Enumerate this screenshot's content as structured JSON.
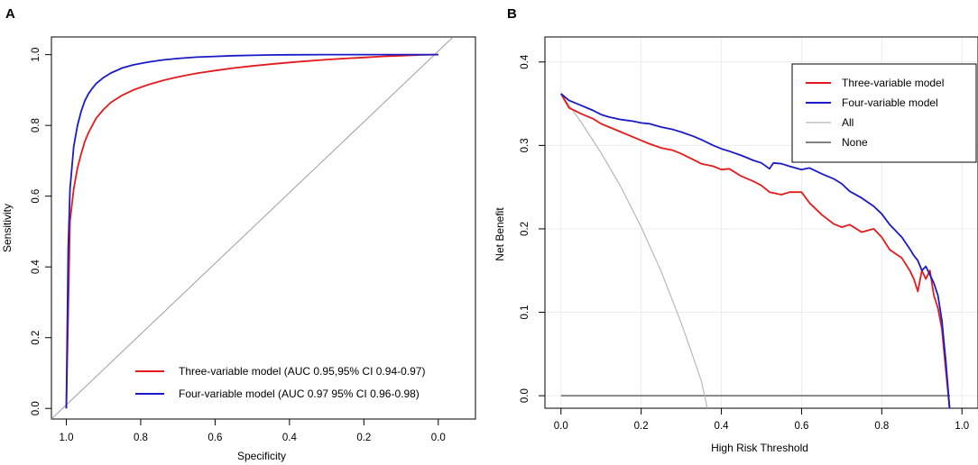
{
  "colors": {
    "three_variable": "#e41a1c",
    "four_variable": "#1a1ac8",
    "all": "#b3b3b3",
    "none": "#333333",
    "diagonal": "#9e9e9e",
    "grid": "#ececec"
  },
  "chart_data": [
    {
      "panel_label": "A",
      "type": "line",
      "title": "",
      "xlabel": "Specificity",
      "ylabel": "Sensitivity",
      "xlim": [
        1.04,
        -0.1
      ],
      "ylim": [
        -0.03,
        1.05
      ],
      "x_ticks": [
        1.0,
        0.8,
        0.6,
        0.4,
        0.2,
        0.0
      ],
      "x_tick_labels": [
        "1.0",
        "0.8",
        "0.6",
        "0.4",
        "0.2",
        "0.0"
      ],
      "y_ticks": [
        0.0,
        0.2,
        0.4,
        0.6,
        0.8,
        1.0
      ],
      "y_tick_labels": [
        "0.0",
        "0.2",
        "0.4",
        "0.6",
        "0.8",
        "1.0"
      ],
      "grid": false,
      "legend_position": "bottom-right",
      "series": [
        {
          "name": "Three-variable model (AUC 0.95,95% CI 0.94-0.97)",
          "color_key": "three_variable",
          "x": [
            1.0,
            0.99,
            0.98,
            0.97,
            0.96,
            0.95,
            0.94,
            0.93,
            0.92,
            0.9,
            0.88,
            0.85,
            0.82,
            0.78,
            0.74,
            0.7,
            0.65,
            0.6,
            0.55,
            0.5,
            0.45,
            0.4,
            0.35,
            0.3,
            0.25,
            0.2,
            0.15,
            0.1,
            0.05,
            0.0
          ],
          "y": [
            0.0,
            0.53,
            0.62,
            0.68,
            0.72,
            0.755,
            0.78,
            0.8,
            0.82,
            0.845,
            0.865,
            0.885,
            0.9,
            0.915,
            0.927,
            0.937,
            0.947,
            0.955,
            0.962,
            0.968,
            0.973,
            0.978,
            0.982,
            0.986,
            0.989,
            0.992,
            0.995,
            0.997,
            0.999,
            1.0
          ]
        },
        {
          "name": "Four-variable model (AUC 0.97 95% CI 0.96-0.98)",
          "color_key": "four_variable",
          "x": [
            1.0,
            0.995,
            0.99,
            0.98,
            0.97,
            0.96,
            0.95,
            0.94,
            0.93,
            0.92,
            0.9,
            0.88,
            0.85,
            0.82,
            0.78,
            0.74,
            0.7,
            0.65,
            0.6,
            0.55,
            0.5,
            0.45,
            0.4,
            0.3,
            0.2,
            0.1,
            0.0
          ],
          "y": [
            0.0,
            0.45,
            0.62,
            0.74,
            0.8,
            0.84,
            0.87,
            0.89,
            0.905,
            0.918,
            0.935,
            0.948,
            0.962,
            0.971,
            0.979,
            0.985,
            0.989,
            0.993,
            0.995,
            0.997,
            0.998,
            0.999,
            0.9995,
            1.0,
            1.0,
            1.0,
            1.0
          ]
        },
        {
          "name": "reference",
          "color_key": "diagonal",
          "x": [
            1.04,
            -0.04
          ],
          "y": [
            -0.03,
            1.05
          ]
        }
      ]
    },
    {
      "panel_label": "B",
      "type": "line",
      "title": "",
      "xlabel": "High Risk Threshold",
      "ylabel": "Net Benefit",
      "xlim": [
        -0.04,
        1.04
      ],
      "ylim": [
        -0.015,
        0.43
      ],
      "x_ticks": [
        0.0,
        0.2,
        0.4,
        0.6,
        0.8,
        1.0
      ],
      "x_tick_labels": [
        "0.0",
        "0.2",
        "0.4",
        "0.6",
        "0.8",
        "1.0"
      ],
      "y_ticks": [
        0.0,
        0.1,
        0.2,
        0.3,
        0.4
      ],
      "y_tick_labels": [
        "0.0",
        "0.1",
        "0.2",
        "0.3",
        "0.4"
      ],
      "grid": true,
      "legend_position": "top-right",
      "series": [
        {
          "name": "Three-variable model",
          "color_key": "three_variable",
          "x": [
            0.0,
            0.02,
            0.05,
            0.08,
            0.1,
            0.12,
            0.15,
            0.18,
            0.2,
            0.22,
            0.25,
            0.28,
            0.3,
            0.33,
            0.35,
            0.38,
            0.4,
            0.42,
            0.45,
            0.48,
            0.5,
            0.52,
            0.55,
            0.57,
            0.6,
            0.62,
            0.65,
            0.68,
            0.7,
            0.72,
            0.75,
            0.78,
            0.8,
            0.82,
            0.85,
            0.87,
            0.88,
            0.89,
            0.9,
            0.91,
            0.92,
            0.93,
            0.94,
            0.95,
            0.96,
            0.97
          ],
          "y": [
            0.362,
            0.345,
            0.338,
            0.332,
            0.326,
            0.322,
            0.316,
            0.31,
            0.306,
            0.302,
            0.297,
            0.294,
            0.29,
            0.283,
            0.278,
            0.275,
            0.271,
            0.272,
            0.263,
            0.257,
            0.252,
            0.244,
            0.241,
            0.244,
            0.244,
            0.231,
            0.217,
            0.206,
            0.202,
            0.205,
            0.196,
            0.2,
            0.19,
            0.175,
            0.165,
            0.15,
            0.14,
            0.125,
            0.15,
            0.14,
            0.15,
            0.12,
            0.105,
            0.08,
            0.03,
            -0.02
          ]
        },
        {
          "name": "Four-variable model",
          "color_key": "four_variable",
          "x": [
            0.0,
            0.02,
            0.05,
            0.08,
            0.1,
            0.12,
            0.15,
            0.18,
            0.2,
            0.22,
            0.25,
            0.28,
            0.3,
            0.33,
            0.35,
            0.38,
            0.4,
            0.42,
            0.45,
            0.48,
            0.5,
            0.52,
            0.53,
            0.55,
            0.57,
            0.6,
            0.62,
            0.65,
            0.68,
            0.7,
            0.72,
            0.75,
            0.78,
            0.8,
            0.82,
            0.85,
            0.87,
            0.88,
            0.89,
            0.9,
            0.91,
            0.92,
            0.93,
            0.94,
            0.95,
            0.96,
            0.97
          ],
          "y": [
            0.362,
            0.354,
            0.348,
            0.342,
            0.337,
            0.334,
            0.331,
            0.329,
            0.327,
            0.326,
            0.322,
            0.319,
            0.316,
            0.311,
            0.307,
            0.3,
            0.296,
            0.293,
            0.288,
            0.282,
            0.279,
            0.272,
            0.279,
            0.278,
            0.275,
            0.271,
            0.273,
            0.266,
            0.26,
            0.254,
            0.245,
            0.237,
            0.227,
            0.218,
            0.205,
            0.19,
            0.176,
            0.168,
            0.162,
            0.15,
            0.155,
            0.145,
            0.135,
            0.12,
            0.09,
            0.04,
            -0.02
          ]
        },
        {
          "name": "All",
          "color_key": "all",
          "x": [
            0.0,
            0.05,
            0.1,
            0.15,
            0.2,
            0.25,
            0.3,
            0.33,
            0.35,
            0.365
          ],
          "y": [
            0.362,
            0.328,
            0.291,
            0.25,
            0.202,
            0.149,
            0.087,
            0.046,
            0.018,
            -0.015
          ]
        },
        {
          "name": "None",
          "color_key": "none",
          "x": [
            0.0,
            0.97
          ],
          "y": [
            0.0,
            0.0
          ]
        }
      ]
    }
  ]
}
